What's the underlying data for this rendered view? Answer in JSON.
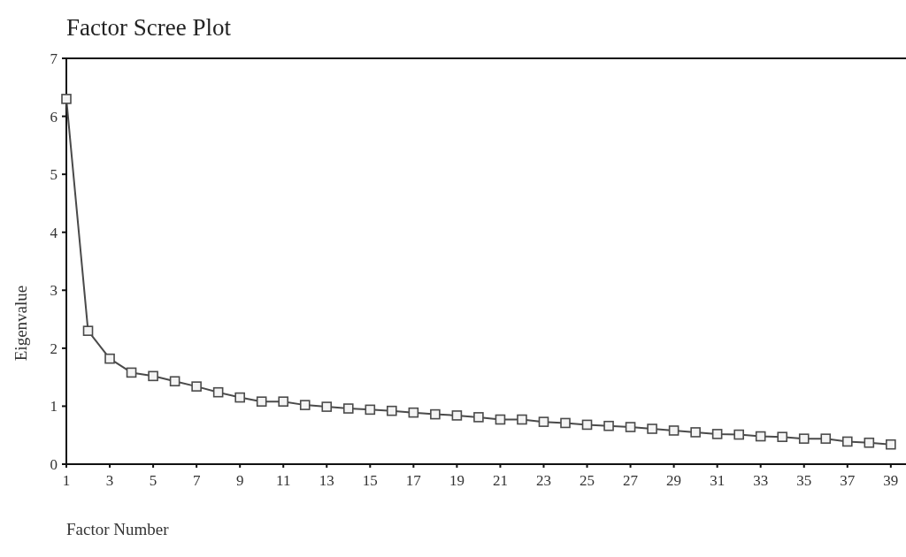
{
  "chart_data": {
    "type": "line",
    "title": "Factor Scree Plot",
    "xlabel": "Factor Number",
    "ylabel": "Eigenvalue",
    "x": [
      1,
      2,
      3,
      4,
      5,
      6,
      7,
      8,
      9,
      10,
      11,
      12,
      13,
      14,
      15,
      16,
      17,
      18,
      19,
      20,
      21,
      22,
      23,
      24,
      25,
      26,
      27,
      28,
      29,
      30,
      31,
      32,
      33,
      34,
      35,
      36,
      37,
      38,
      39
    ],
    "series": [
      {
        "color": "#4a4a4a",
        "values": [
          6.3,
          2.3,
          1.82,
          1.58,
          1.52,
          1.43,
          1.34,
          1.24,
          1.15,
          1.08,
          1.08,
          1.02,
          0.99,
          0.96,
          0.94,
          0.92,
          0.89,
          0.86,
          0.84,
          0.81,
          0.77,
          0.77,
          0.73,
          0.71,
          0.68,
          0.66,
          0.64,
          0.61,
          0.58,
          0.55,
          0.52,
          0.51,
          0.48,
          0.47,
          0.44,
          0.44,
          0.39,
          0.37,
          0.34
        ]
      }
    ],
    "xlim": [
      1,
      39.7
    ],
    "xticks": [
      1,
      3,
      5,
      7,
      9,
      11,
      13,
      15,
      17,
      19,
      21,
      23,
      25,
      27,
      29,
      31,
      33,
      35,
      37,
      39
    ],
    "ylim": [
      0,
      7
    ],
    "yticks": [
      0,
      1,
      2,
      3,
      4,
      5,
      6,
      7
    ],
    "grid": false,
    "marker": "square",
    "line_style": "solid"
  }
}
